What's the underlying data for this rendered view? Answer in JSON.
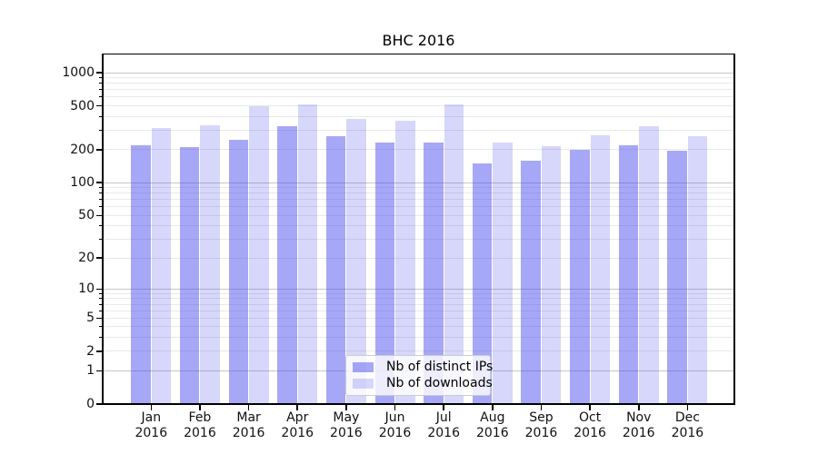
{
  "title": "BHC 2016",
  "chart_data": {
    "type": "bar",
    "title": "BHC 2016",
    "categories": [
      "Jan 2016",
      "Feb 2016",
      "Mar 2016",
      "Apr 2016",
      "May 2016",
      "Jun 2016",
      "Jul 2016",
      "Aug 2016",
      "Sep 2016",
      "Oct 2016",
      "Nov 2016",
      "Dec 2016"
    ],
    "series": [
      {
        "name": "Nb of distinct IPs",
        "color": "rgba(68,68,238,0.47)",
        "values": [
          218,
          210,
          245,
          325,
          265,
          230,
          234,
          150,
          160,
          201,
          220,
          197
        ]
      },
      {
        "name": "Nb of downloads",
        "color": "rgba(68,68,238,0.21)",
        "values": [
          315,
          333,
          498,
          515,
          382,
          364,
          515,
          233,
          216,
          271,
          325,
          266
        ]
      }
    ],
    "xlabel": "",
    "ylabel": "",
    "yscale": "symlog (log1p)",
    "y_tick_values": [
      0,
      1,
      2,
      5,
      10,
      20,
      50,
      100,
      200,
      500,
      1000
    ],
    "y_tick_labels": [
      "0",
      "1",
      "2",
      "5",
      "10",
      "20",
      "50",
      "100",
      "200",
      "500",
      "1000"
    ],
    "ylim": [
      0,
      1474
    ],
    "grid": "horizontal, major and minor",
    "legend_position": "lower center"
  },
  "colors": {
    "bar_distinct_ips": "rgba(68,68,238,0.47)",
    "bar_downloads": "rgba(68,68,238,0.21)",
    "grid_major": "#c6c6c6",
    "grid_minor": "#e9e9e9",
    "axis": "#000000",
    "background": "#ffffff",
    "legend_border": "#cccccc"
  }
}
